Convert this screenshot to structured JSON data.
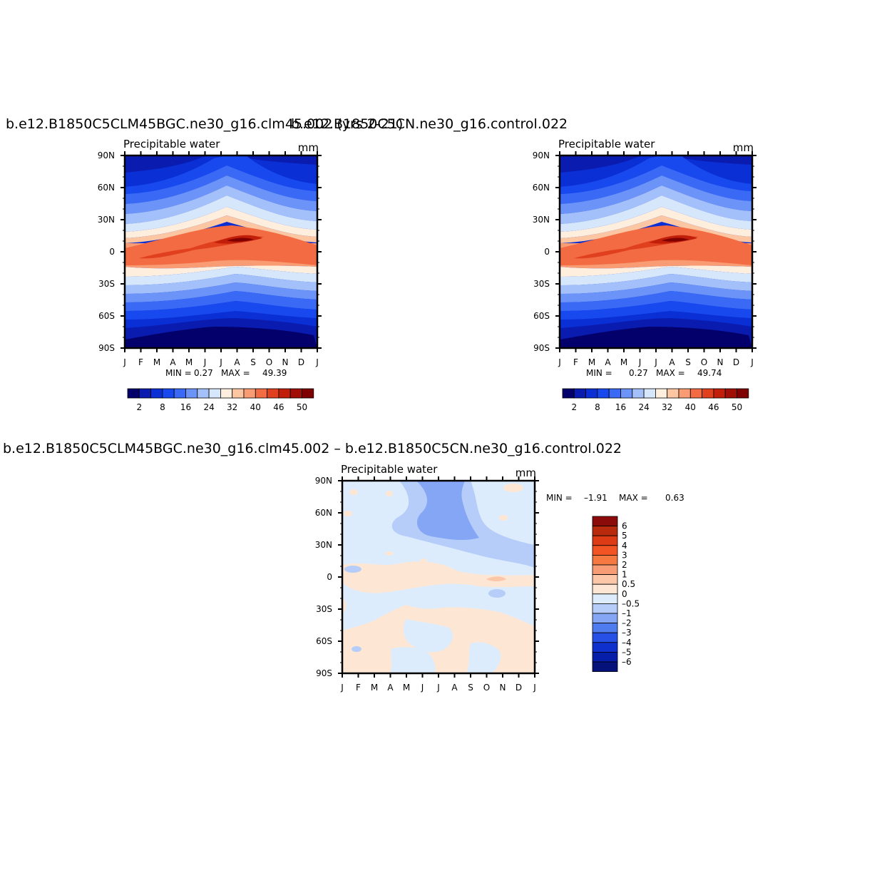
{
  "chart_data": [
    {
      "type": "contour",
      "title": "b.e12.B1850C5CLM45BGC.ne30_g16.clm45.002 (yrs 2-21)",
      "left_label": "Precipitable water",
      "right_label": "mm",
      "x_tick_labels": [
        "J",
        "F",
        "M",
        "A",
        "M",
        "J",
        "J",
        "A",
        "S",
        "O",
        "N",
        "D",
        "J"
      ],
      "y_tick_labels": [
        "90N",
        "60N",
        "30N",
        "0",
        "30S",
        "60S",
        "90S"
      ],
      "min_label": "MIN =",
      "min": "0.27",
      "max_label": "MAX =",
      "max": "49.39",
      "colorbar_labels": [
        "2",
        "8",
        "16",
        "24",
        "32",
        "40",
        "46",
        "50"
      ],
      "colorbar_colors": [
        "#04006b",
        "#0a1cb0",
        "#0a2fd4",
        "#1849ef",
        "#3a6af5",
        "#6b93f8",
        "#a4c0fa",
        "#d6e7fc",
        "#fdeede",
        "#fcc6a3",
        "#f99c73",
        "#f26b43",
        "#e0401d",
        "#c21f0b",
        "#a00e06",
        "#7f0000"
      ]
    },
    {
      "type": "contour",
      "title": "b.e12.B1850C5CN.ne30_g16.control.022",
      "left_label": "Precipitable water",
      "right_label": "mm",
      "x_tick_labels": [
        "J",
        "F",
        "M",
        "A",
        "M",
        "J",
        "J",
        "A",
        "S",
        "O",
        "N",
        "D",
        "J"
      ],
      "y_tick_labels": [
        "90N",
        "60N",
        "30N",
        "0",
        "30S",
        "60S",
        "90S"
      ],
      "min_label": "MIN =",
      "min": "0.27",
      "max_label": "MAX =",
      "max": "49.74",
      "colorbar_labels": [
        "2",
        "8",
        "16",
        "24",
        "32",
        "40",
        "46",
        "50"
      ]
    },
    {
      "type": "contour",
      "title": "b.e12.B1850C5CLM45BGC.ne30_g16.clm45.002 – b.e12.B1850C5CN.ne30_g16.control.022",
      "left_label": "Precipitable water",
      "right_label": "mm",
      "x_tick_labels": [
        "J",
        "F",
        "M",
        "A",
        "M",
        "J",
        "J",
        "A",
        "S",
        "O",
        "N",
        "D",
        "J"
      ],
      "y_tick_labels": [
        "90N",
        "60N",
        "30N",
        "0",
        "30S",
        "60S",
        "90S"
      ],
      "min_label": "MIN =",
      "min": "–1.91",
      "max_label": "MAX =",
      "max": "0.63",
      "colorbar_labels": [
        "6",
        "5",
        "4",
        "3",
        "2",
        "1",
        "0.5",
        "0",
        "–0.5",
        "–1",
        "–2",
        "–3",
        "–4",
        "–5",
        "–6"
      ],
      "colorbar_colors": [
        "#8b0a0a",
        "#b82a0e",
        "#dd3b16",
        "#f25423",
        "#f47840",
        "#f89c76",
        "#fcc6a8",
        "#fde7d4",
        "#ddecfc",
        "#b5cdf8",
        "#84a6f4",
        "#4f7cef",
        "#2750e6",
        "#1030cd",
        "#071ea8",
        "#04127a"
      ]
    }
  ]
}
